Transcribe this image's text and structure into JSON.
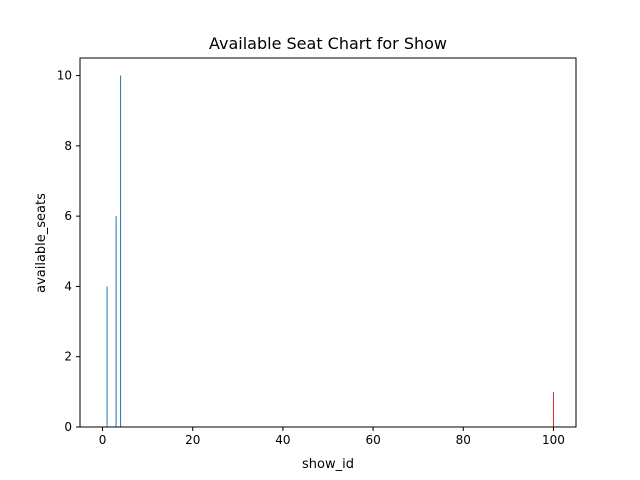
{
  "chart_data": {
    "type": "bar",
    "title": "Available Seat Chart for Show",
    "xlabel": "show_id",
    "ylabel": "available_seats",
    "xlim": [
      -5,
      105
    ],
    "ylim": [
      0,
      10.5
    ],
    "xticks": [
      0,
      20,
      40,
      60,
      80,
      100
    ],
    "yticks": [
      0,
      2,
      4,
      6,
      8,
      10
    ],
    "grid": false,
    "bars": [
      {
        "x": 1,
        "y": 4,
        "color": "#1f77b4"
      },
      {
        "x": 2,
        "y": 0,
        "color": "#1f77b4"
      },
      {
        "x": 3,
        "y": 6,
        "color": "#1f77b4"
      },
      {
        "x": 4,
        "y": 10,
        "color": "#1f77b4"
      },
      {
        "x": 100,
        "y": 1,
        "color": "#d62728"
      }
    ]
  }
}
